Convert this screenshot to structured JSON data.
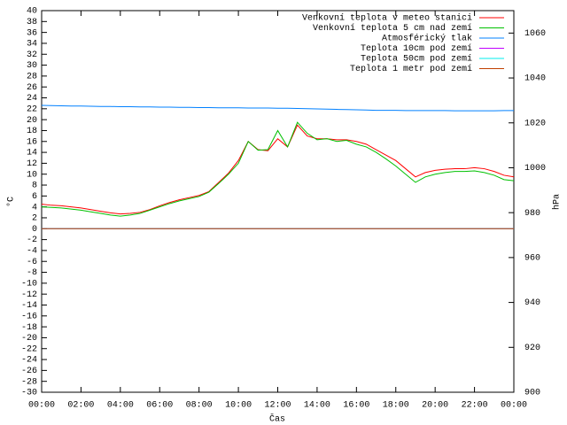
{
  "chart_data": {
    "type": "line",
    "xlabel": "Čas",
    "ylabel": "°C",
    "y2label": "hPa",
    "x": [
      0,
      0.5,
      1,
      1.5,
      2,
      2.5,
      3,
      3.5,
      4,
      4.5,
      5,
      5.5,
      6,
      6.5,
      7,
      7.5,
      8,
      8.5,
      9,
      9.5,
      10,
      10.5,
      11,
      11.5,
      12,
      12.5,
      13,
      13.5,
      14,
      14.5,
      15,
      15.5,
      16,
      16.5,
      17,
      17.5,
      18,
      18.5,
      19,
      19.5,
      20,
      20.5,
      21,
      21.5,
      22,
      22.5,
      23,
      23.5,
      24
    ],
    "xlim": [
      0,
      24
    ],
    "xticks": [
      {
        "value": 0,
        "label": "00:00"
      },
      {
        "value": 2,
        "label": "02:00"
      },
      {
        "value": 4,
        "label": "04:00"
      },
      {
        "value": 6,
        "label": "06:00"
      },
      {
        "value": 8,
        "label": "08:00"
      },
      {
        "value": 10,
        "label": "10:00"
      },
      {
        "value": 12,
        "label": "12:00"
      },
      {
        "value": 14,
        "label": "14:00"
      },
      {
        "value": 16,
        "label": "16:00"
      },
      {
        "value": 18,
        "label": "18:00"
      },
      {
        "value": 20,
        "label": "20:00"
      },
      {
        "value": 22,
        "label": "22:00"
      },
      {
        "value": 24,
        "label": "00:00"
      }
    ],
    "ylim": [
      -30,
      40
    ],
    "yticks": [
      -30,
      -28,
      -26,
      -24,
      -22,
      -20,
      -18,
      -16,
      -14,
      -12,
      -10,
      -8,
      -6,
      -4,
      -2,
      0,
      2,
      4,
      6,
      8,
      10,
      12,
      14,
      16,
      18,
      20,
      22,
      24,
      26,
      28,
      30,
      32,
      34,
      36,
      38,
      40
    ],
    "y2lim": [
      900,
      1070
    ],
    "y2ticks": [
      900,
      920,
      940,
      960,
      980,
      1000,
      1020,
      1040,
      1060
    ],
    "legend": "upper right",
    "series": [
      {
        "name": "Venkovní teplota v meteo stanici",
        "color": "#ff0000",
        "values": [
          4.5,
          4.3,
          4.2,
          4.0,
          3.8,
          3.5,
          3.2,
          2.9,
          2.7,
          2.8,
          3.0,
          3.5,
          4.2,
          4.8,
          5.3,
          5.7,
          6.1,
          6.8,
          8.5,
          10.2,
          12.5,
          16.0,
          14.5,
          14.3,
          16.5,
          15.0,
          19.0,
          17.0,
          16.5,
          16.5,
          16.3,
          16.3,
          16.0,
          15.5,
          14.5,
          13.5,
          12.5,
          11.0,
          9.5,
          10.3,
          10.7,
          10.9,
          11.0,
          11.0,
          11.2,
          11.0,
          10.5,
          9.8,
          9.5
        ]
      },
      {
        "name": "Venkovní teplota 5 cm nad zemí",
        "color": "#00c000",
        "values": [
          4.0,
          3.9,
          3.8,
          3.6,
          3.4,
          3.1,
          2.8,
          2.5,
          2.3,
          2.5,
          2.8,
          3.4,
          4.0,
          4.6,
          5.1,
          5.5,
          5.9,
          6.7,
          8.3,
          10.0,
          12.0,
          16.0,
          14.4,
          14.5,
          18.0,
          15.0,
          19.5,
          17.5,
          16.3,
          16.5,
          16.0,
          16.2,
          15.5,
          15.0,
          14.0,
          12.8,
          11.5,
          10.0,
          8.5,
          9.5,
          10.0,
          10.3,
          10.5,
          10.5,
          10.6,
          10.3,
          9.8,
          9.0,
          8.8
        ]
      },
      {
        "name": "Atmosférický tlak",
        "color": "#0080ff",
        "axis": "y2",
        "values": [
          1027.8,
          1027.7,
          1027.6,
          1027.5,
          1027.5,
          1027.4,
          1027.3,
          1027.3,
          1027.2,
          1027.2,
          1027.1,
          1027.1,
          1027.0,
          1027.0,
          1026.9,
          1026.9,
          1026.8,
          1026.8,
          1026.7,
          1026.7,
          1026.7,
          1026.6,
          1026.6,
          1026.6,
          1026.5,
          1026.5,
          1026.4,
          1026.3,
          1026.2,
          1026.1,
          1026.0,
          1025.9,
          1025.8,
          1025.7,
          1025.6,
          1025.6,
          1025.6,
          1025.5,
          1025.5,
          1025.5,
          1025.5,
          1025.5,
          1025.4,
          1025.4,
          1025.4,
          1025.4,
          1025.4,
          1025.5,
          1025.5
        ]
      },
      {
        "name": "Teplota 10cm pod zemí",
        "color": "#c000ff",
        "values": [
          0,
          0,
          0,
          0,
          0,
          0,
          0,
          0,
          0,
          0,
          0,
          0,
          0,
          0,
          0,
          0,
          0,
          0,
          0,
          0,
          0,
          0,
          0,
          0,
          0,
          0,
          0,
          0,
          0,
          0,
          0,
          0,
          0,
          0,
          0,
          0,
          0,
          0,
          0,
          0,
          0,
          0,
          0,
          0,
          0,
          0,
          0,
          0,
          0
        ]
      },
      {
        "name": "Teplota 50cm pod zemí",
        "color": "#00eeee",
        "values": [
          0,
          0,
          0,
          0,
          0,
          0,
          0,
          0,
          0,
          0,
          0,
          0,
          0,
          0,
          0,
          0,
          0,
          0,
          0,
          0,
          0,
          0,
          0,
          0,
          0,
          0,
          0,
          0,
          0,
          0,
          0,
          0,
          0,
          0,
          0,
          0,
          0,
          0,
          0,
          0,
          0,
          0,
          0,
          0,
          0,
          0,
          0,
          0,
          0
        ]
      },
      {
        "name": "Teplota 1 metr pod zemí",
        "color": "#c04000",
        "values": [
          0,
          0,
          0,
          0,
          0,
          0,
          0,
          0,
          0,
          0,
          0,
          0,
          0,
          0,
          0,
          0,
          0,
          0,
          0,
          0,
          0,
          0,
          0,
          0,
          0,
          0,
          0,
          0,
          0,
          0,
          0,
          0,
          0,
          0,
          0,
          0,
          0,
          0,
          0,
          0,
          0,
          0,
          0,
          0,
          0,
          0,
          0,
          0,
          0
        ]
      }
    ]
  }
}
